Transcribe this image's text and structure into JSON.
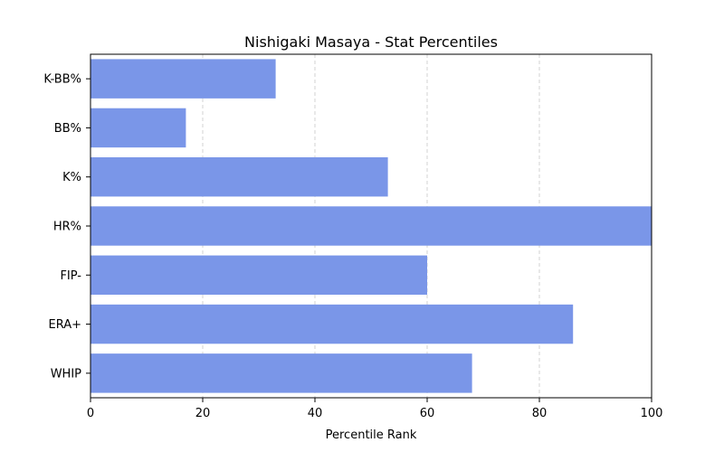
{
  "chart_data": {
    "type": "bar",
    "orientation": "horizontal",
    "title": "Nishigaki Masaya - Stat Percentiles",
    "xlabel": "Percentile Rank",
    "ylabel": "",
    "categories": [
      "K-BB%",
      "BB%",
      "K%",
      "HR%",
      "FIP-",
      "ERA+",
      "WHIP"
    ],
    "values": [
      33,
      17,
      53,
      100,
      60,
      86,
      68
    ],
    "xlim": [
      0,
      100
    ],
    "xticks": [
      0,
      20,
      40,
      60,
      80,
      100
    ],
    "grid": "vertical dashed",
    "bar_color": "#7a96e8"
  }
}
